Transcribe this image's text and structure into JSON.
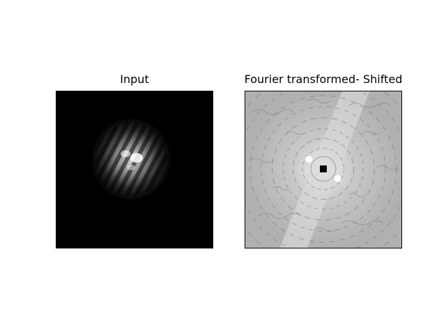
{
  "figure": {
    "panels": [
      {
        "title": "Input"
      },
      {
        "title": "Fourier transformed- Shifted"
      }
    ]
  }
}
